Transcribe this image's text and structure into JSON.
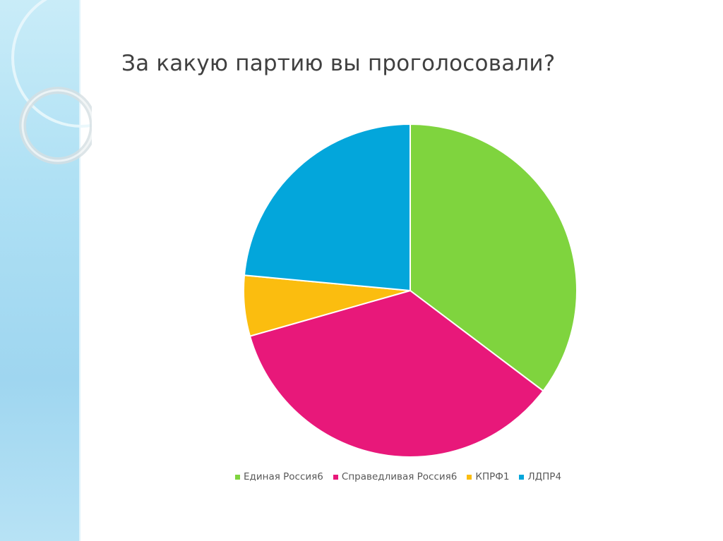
{
  "title": "За какую партию вы проголосовали?",
  "chart_data": {
    "type": "pie",
    "title": "За какую партию вы проголосовали?",
    "legend_position": "bottom",
    "slices": [
      {
        "label": "Единая Россия",
        "value": 6,
        "color": "#7fd43e",
        "legend_text": "Единая Россия6"
      },
      {
        "label": "Справедливая Россия",
        "value": 6,
        "color": "#e8187a",
        "legend_text": "Справедливая Россия6"
      },
      {
        "label": "КПРФ",
        "value": 1,
        "color": "#fbbd0f",
        "legend_text": "КПРФ1"
      },
      {
        "label": "ЛДПР",
        "value": 4,
        "color": "#03a6db",
        "legend_text": "ЛДПР4"
      }
    ]
  }
}
